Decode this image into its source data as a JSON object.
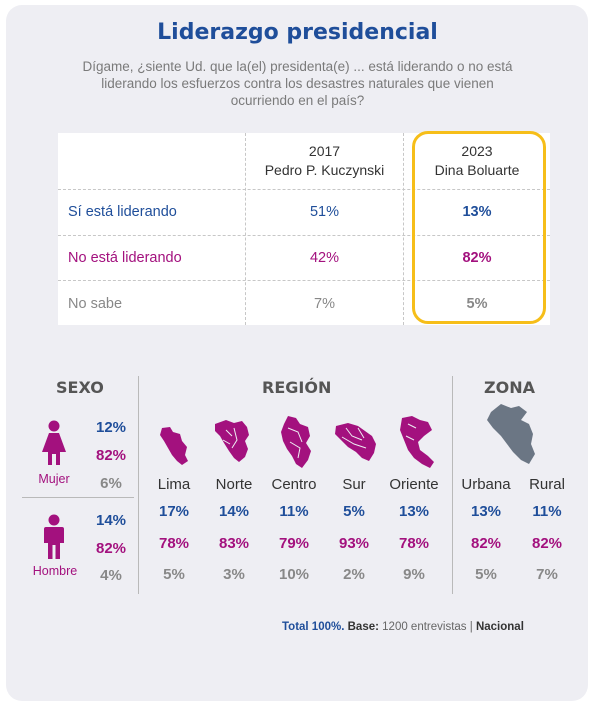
{
  "title": "Liderazgo presidencial",
  "question": [
    "Dígame, ¿siente Ud. que la(el) presidenta(e)  ... está liderando o no está",
    "liderando los esfuerzos contra los desastres naturales que vienen",
    "ocurriendo en el país?"
  ],
  "colors": {
    "blue": "#1f4e9a",
    "purple": "#a3117e",
    "gray": "#888888",
    "highlight": "#f6be19",
    "map_purple": "#a3117e",
    "map_gray": "#6b7684"
  },
  "chart_data": [
    {
      "type": "table",
      "columns": [
        {
          "year": "2017",
          "name": "Pedro P. Kuczynski"
        },
        {
          "year": "2023",
          "name": "Dina Boluarte"
        }
      ],
      "rows": [
        {
          "label": "Sí está liderando",
          "values": [
            "51%",
            "13%"
          ]
        },
        {
          "label": "No está liderando",
          "values": [
            "42%",
            "82%"
          ]
        },
        {
          "label": "No sabe",
          "values": [
            "7%",
            "5%"
          ]
        }
      ]
    },
    {
      "type": "table",
      "title": "SEXO",
      "groups": [
        {
          "label": "Mujer",
          "icon": "woman-icon",
          "values": [
            "12%",
            "82%",
            "6%"
          ]
        },
        {
          "label": "Hombre",
          "icon": "man-icon",
          "values": [
            "14%",
            "82%",
            "4%"
          ]
        }
      ]
    },
    {
      "type": "table",
      "title": "REGIÓN",
      "groups": [
        {
          "label": "Lima",
          "icon": "lima-map-icon",
          "values": [
            "17%",
            "78%",
            "5%"
          ]
        },
        {
          "label": "Norte",
          "icon": "norte-map-icon",
          "values": [
            "14%",
            "83%",
            "3%"
          ]
        },
        {
          "label": "Centro",
          "icon": "centro-map-icon",
          "values": [
            "11%",
            "79%",
            "10%"
          ]
        },
        {
          "label": "Sur",
          "icon": "sur-map-icon",
          "values": [
            "5%",
            "93%",
            "2%"
          ]
        },
        {
          "label": "Oriente",
          "icon": "oriente-map-icon",
          "values": [
            "13%",
            "78%",
            "9%"
          ]
        }
      ]
    },
    {
      "type": "table",
      "title": "ZONA",
      "icon": "peru-map-icon",
      "groups": [
        {
          "label": "Urbana",
          "values": [
            "13%",
            "82%",
            "5%"
          ]
        },
        {
          "label": "Rural",
          "values": [
            "11%",
            "82%",
            "7%"
          ]
        }
      ]
    }
  ],
  "footer": {
    "total": "Total 100%.",
    "base_label": "Base:",
    "base_value": "1200 entrevistas",
    "separator": "|",
    "scope": "Nacional"
  }
}
